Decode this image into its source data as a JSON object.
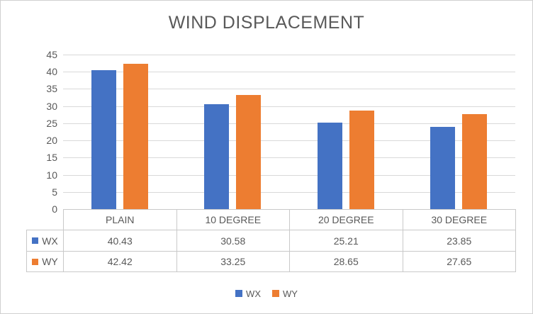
{
  "chart_data": {
    "type": "bar",
    "title": "WIND DISPLACEMENT",
    "categories": [
      "PLAIN",
      "10 DEGREE",
      "20 DEGREE",
      "30 DEGREE"
    ],
    "series": [
      {
        "name": "WX",
        "color": "#4472C4",
        "values": [
          40.43,
          30.58,
          25.21,
          23.85
        ]
      },
      {
        "name": "WY",
        "color": "#ED7D31",
        "values": [
          42.42,
          33.25,
          28.65,
          27.65
        ]
      }
    ],
    "ylim": [
      0,
      45
    ],
    "yticks": [
      0,
      5,
      10,
      15,
      20,
      25,
      30,
      35,
      40,
      45
    ],
    "grid": true,
    "legend_position": "bottom",
    "data_table_shown": true
  },
  "colors": {
    "text": "#595959",
    "gridline": "#d9d9d9",
    "table_border": "#c9c9c9",
    "series_wx": "#4472C4",
    "series_wy": "#ED7D31"
  }
}
